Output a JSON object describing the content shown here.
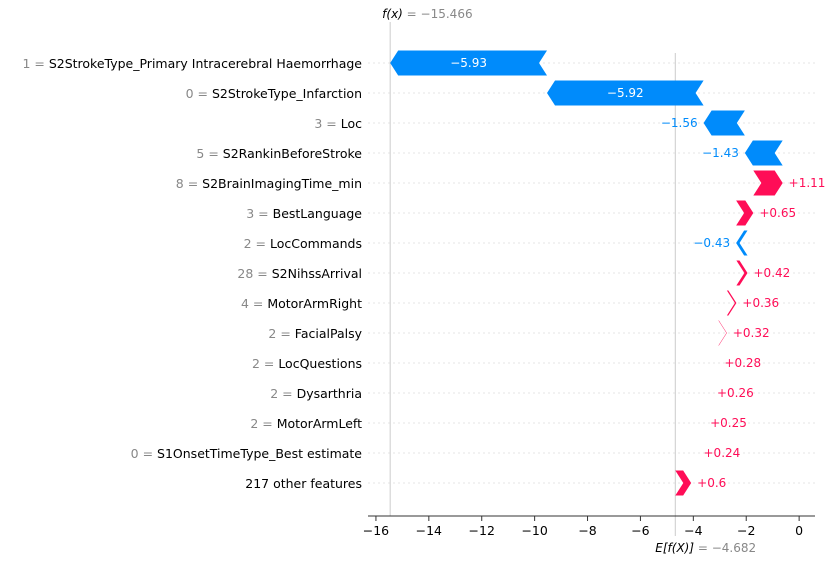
{
  "chart_data": {
    "type": "bar",
    "fx_label": "f(x)",
    "fx_value": "−15.466",
    "ex_label": "E[f(X)]",
    "ex_value": "−4.682",
    "base_value": -4.682,
    "xlim": [
      -16.3,
      0.6
    ],
    "x_ticks": [
      -16,
      -14,
      -12,
      -10,
      -8,
      -6,
      -4,
      -2,
      0
    ],
    "x_tick_labels": [
      "−16",
      "−14",
      "−12",
      "−10",
      "−8",
      "−6",
      "−4",
      "−2",
      "0"
    ],
    "positive_color": "#ff0d57",
    "negative_color": "#008bfb",
    "features": [
      {
        "value": "1",
        "name": "S2StrokeType_Primary Intracerebral Haemorrhage",
        "contribution": -5.93,
        "label": "−5.93"
      },
      {
        "value": "0",
        "name": "S2StrokeType_Infarction",
        "contribution": -5.92,
        "label": "−5.92"
      },
      {
        "value": "3",
        "name": "Loc",
        "contribution": -1.56,
        "label": "−1.56"
      },
      {
        "value": "5",
        "name": "S2RankinBeforeStroke",
        "contribution": -1.43,
        "label": "−1.43"
      },
      {
        "value": "8",
        "name": "S2BrainImagingTime_min",
        "contribution": 1.11,
        "label": "+1.11"
      },
      {
        "value": "3",
        "name": "BestLanguage",
        "contribution": 0.65,
        "label": "+0.65"
      },
      {
        "value": "2",
        "name": "LocCommands",
        "contribution": -0.43,
        "label": "−0.43"
      },
      {
        "value": "28",
        "name": "S2NihssArrival",
        "contribution": 0.42,
        "label": "+0.42"
      },
      {
        "value": "4",
        "name": "MotorArmRight",
        "contribution": 0.36,
        "label": "+0.36"
      },
      {
        "value": "2",
        "name": "FacialPalsy",
        "contribution": 0.32,
        "label": "+0.32"
      },
      {
        "value": "2",
        "name": "LocQuestions",
        "contribution": 0.28,
        "label": "+0.28"
      },
      {
        "value": "2",
        "name": "Dysarthria",
        "contribution": 0.26,
        "label": "+0.26"
      },
      {
        "value": "2",
        "name": "MotorArmLeft",
        "contribution": 0.25,
        "label": "+0.25"
      },
      {
        "value": "0",
        "name": "S1OnsetTimeType_Best estimate",
        "contribution": 0.24,
        "label": "+0.24"
      },
      {
        "value": "",
        "name": "217 other features",
        "contribution": 0.6,
        "label": "+0.6"
      }
    ]
  }
}
